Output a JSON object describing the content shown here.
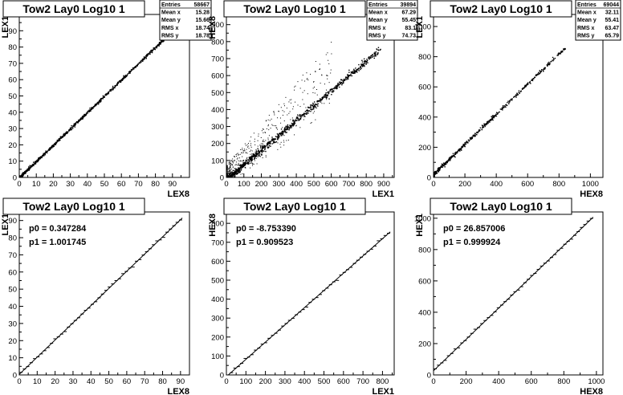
{
  "chart_data": [
    {
      "type": "scatter",
      "title": "Tow2 Lay0 Log10 1",
      "xlabel": "LEX8",
      "ylabel": "LEX1",
      "xlim": [
        0,
        100
      ],
      "ylim": [
        0,
        100
      ],
      "xticks": [
        0,
        10,
        20,
        30,
        40,
        50,
        60,
        70,
        80,
        90
      ],
      "yticks": [
        0,
        10,
        20,
        30,
        40,
        50,
        60,
        70,
        80,
        90
      ],
      "stats": [
        [
          "Entries",
          "58667"
        ],
        [
          "Mean x",
          "15.28"
        ],
        [
          "Mean y",
          "15.66"
        ],
        [
          "RMS x",
          "18.74"
        ],
        [
          "RMS y",
          "18.78"
        ]
      ],
      "density": {
        "x_range": [
          0,
          88
        ],
        "slope": 1.0,
        "intercept": 0.3,
        "spread": 0.6,
        "n": 900,
        "outliers": 0
      }
    },
    {
      "type": "scatter",
      "title": "Tow2 Lay0 Log10 1",
      "xlabel": "LEX1",
      "ylabel": "HEX8",
      "xlim": [
        0,
        960
      ],
      "ylim": [
        0,
        960
      ],
      "xticks": [
        0,
        100,
        200,
        300,
        400,
        500,
        600,
        700,
        800,
        900
      ],
      "yticks": [
        0,
        100,
        200,
        300,
        400,
        500,
        600,
        700,
        800,
        900
      ],
      "stats": [
        [
          "Entries",
          "39894"
        ],
        [
          "Mean x",
          "67.29"
        ],
        [
          "Mean y",
          "55.45"
        ],
        [
          "RMS x",
          "83.1"
        ],
        [
          "RMS y",
          "74.73"
        ]
      ],
      "density": {
        "x_range": [
          0,
          880
        ],
        "slope": 0.87,
        "intercept": -8,
        "spread": 14,
        "n": 900,
        "outliers": 420
      }
    },
    {
      "type": "scatter",
      "title": "Tow2 Lay0 Log10 1",
      "xlabel": "HEX8",
      "ylabel": "LEX1",
      "xlim": [
        0,
        1080
      ],
      "ylim": [
        0,
        1080
      ],
      "xticks": [
        0,
        200,
        400,
        600,
        800,
        1000
      ],
      "yticks": [
        0,
        200,
        400,
        600,
        800,
        1000
      ],
      "stats": [
        [
          "Entries",
          "69044"
        ],
        [
          "Mean x",
          "32.11"
        ],
        [
          "Mean y",
          "55.41"
        ],
        [
          "RMS x",
          "63.47"
        ],
        [
          "RMS y",
          "65.79"
        ]
      ],
      "density": {
        "x_range": [
          0,
          840
        ],
        "slope": 1.0,
        "intercept": 25,
        "spread": 8,
        "n": 520,
        "outliers": 0
      }
    },
    {
      "type": "line",
      "title": "Tow2 Lay0 Log10 1",
      "xlabel": "LEX8",
      "ylabel": "LEX1",
      "xlim": [
        0,
        95
      ],
      "ylim": [
        0,
        95
      ],
      "xticks": [
        0,
        10,
        20,
        30,
        40,
        50,
        60,
        70,
        80,
        90
      ],
      "yticks": [
        0,
        10,
        20,
        30,
        40,
        50,
        60,
        70,
        80,
        90
      ],
      "fit": {
        "p0": "0.347284",
        "p1": "1.001745",
        "x_range": [
          0,
          91
        ]
      },
      "p0_label": "p0 = 0.347284",
      "p1_label": "p1 = 1.001745"
    },
    {
      "type": "line",
      "title": "Tow2 Lay0 Log10 1",
      "xlabel": "LEX1",
      "ylabel": "HEX8",
      "xlim": [
        0,
        860
      ],
      "ylim": [
        0,
        860
      ],
      "xticks": [
        0,
        100,
        200,
        300,
        400,
        500,
        600,
        700,
        800
      ],
      "yticks": [
        0,
        100,
        200,
        300,
        400,
        500,
        600,
        700,
        800
      ],
      "fit": {
        "p0": "-8.753390",
        "p1": "0.909523",
        "x_range": [
          0,
          840
        ]
      },
      "p0_label": "p0 = -8.753390",
      "p1_label": "p1 = 0.909523"
    },
    {
      "type": "line",
      "title": "Tow2 Lay0 Log10 1",
      "xlabel": "HEX8",
      "ylabel": "HEX1",
      "xlim": [
        0,
        1040
      ],
      "ylim": [
        0,
        1040
      ],
      "xticks": [
        0,
        200,
        400,
        600,
        800,
        1000
      ],
      "yticks": [
        0,
        200,
        400,
        600,
        800,
        1000
      ],
      "fit": {
        "p0": "26.857006",
        "p1": "0.999924",
        "x_range": [
          0,
          980
        ]
      },
      "p0_label": "p0 = 26.857006",
      "p1_label": "p1 = 0.999924"
    }
  ]
}
